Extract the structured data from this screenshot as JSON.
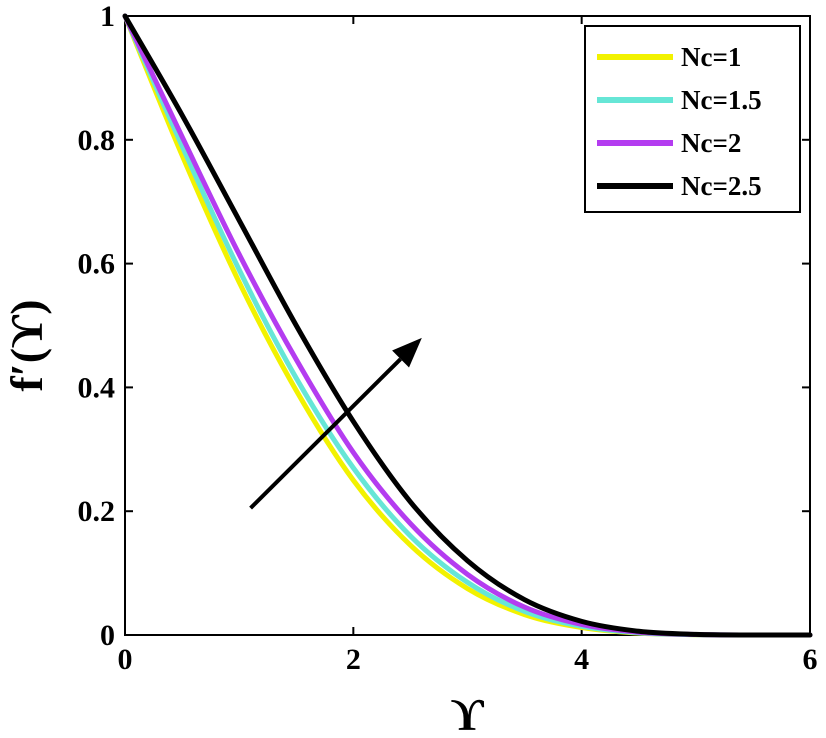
{
  "chart_data": {
    "type": "line",
    "title": "",
    "xlabel": "ϒ",
    "ylabel": "f′(ϒ)",
    "xlim": [
      0,
      6
    ],
    "ylim": [
      0,
      1
    ],
    "xticks": [
      0,
      2,
      4,
      6
    ],
    "yticks": [
      0,
      0.2,
      0.4,
      0.6,
      0.8,
      1
    ],
    "xtick_labels": [
      "0",
      "2",
      "4",
      "6"
    ],
    "ytick_labels": [
      "0",
      "0.2",
      "0.4",
      "0.6",
      "0.8",
      "1"
    ],
    "grid": false,
    "legend_position": "top-right",
    "x": [
      0,
      0.5,
      1,
      1.5,
      2,
      2.5,
      3,
      3.5,
      4,
      4.5,
      5,
      5.5,
      6
    ],
    "series": [
      {
        "name": "Nc=1",
        "color": "#f2f200",
        "values": [
          1.0,
          0.775,
          0.57,
          0.395,
          0.25,
          0.145,
          0.075,
          0.033,
          0.012,
          0.003,
          0.0005,
          0.0,
          0.0
        ]
      },
      {
        "name": "Nc=1.5",
        "color": "#66e6d6",
        "values": [
          1.0,
          0.79,
          0.59,
          0.415,
          0.27,
          0.16,
          0.085,
          0.038,
          0.014,
          0.0035,
          0.0006,
          0.0,
          0.0
        ]
      },
      {
        "name": "Nc=2",
        "color": "#b43cf0",
        "values": [
          1.0,
          0.805,
          0.615,
          0.445,
          0.295,
          0.18,
          0.098,
          0.045,
          0.017,
          0.0045,
          0.0008,
          0.0,
          0.0
        ]
      },
      {
        "name": "Nc=2.5",
        "color": "#000000",
        "values": [
          1.0,
          0.84,
          0.67,
          0.5,
          0.345,
          0.215,
          0.12,
          0.057,
          0.022,
          0.006,
          0.001,
          0.0,
          0.0
        ]
      }
    ],
    "annotations": [
      {
        "type": "arrow",
        "from": [
          1.1,
          0.205
        ],
        "to": [
          2.6,
          0.48
        ],
        "color": "#000000"
      }
    ]
  }
}
